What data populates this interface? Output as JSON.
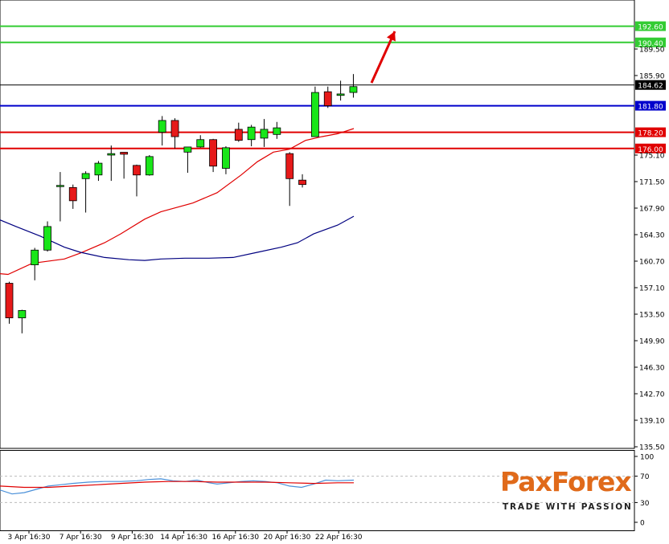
{
  "chart_data": [
    {
      "type": "candlestick",
      "y_ticks": [
        "189.50",
        "185.90",
        "175.10",
        "171.50",
        "167.90",
        "164.30",
        "160.70",
        "157.10",
        "153.50",
        "149.90",
        "146.30",
        "142.70",
        "139.10",
        "135.50"
      ],
      "ylim": [
        135.5,
        193.0
      ],
      "x_labels": [
        "3 Apr 16:30",
        "7 Apr 16:30",
        "9 Apr 16:30",
        "14 Apr 16:30",
        "16 Apr 16:30",
        "20 Apr 16:30",
        "22 Apr 16:30"
      ],
      "current_price": {
        "label": "184.62",
        "value": 184.62
      },
      "levels": [
        {
          "label": "192.60",
          "value": 192.6,
          "color": "#33cc33"
        },
        {
          "label": "190.40",
          "value": 190.4,
          "color": "#33cc33"
        },
        {
          "label": "181.80",
          "value": 181.8,
          "color": "#0000cc"
        },
        {
          "label": "178.20",
          "value": 178.2,
          "color": "#e00000"
        },
        {
          "label": "176.00",
          "value": 176.0,
          "color": "#e00000"
        }
      ],
      "candles": [
        {
          "o": 157.7,
          "h": 157.9,
          "l": 152.2,
          "c": 153.0
        },
        {
          "o": 153.0,
          "h": 154.1,
          "l": 150.9,
          "c": 154.0
        },
        {
          "o": 160.2,
          "h": 162.5,
          "l": 158.1,
          "c": 162.2
        },
        {
          "o": 162.2,
          "h": 166.1,
          "l": 162.0,
          "c": 165.4
        },
        {
          "o": 170.9,
          "h": 172.8,
          "l": 166.1,
          "c": 170.9
        },
        {
          "o": 170.7,
          "h": 171.1,
          "l": 167.8,
          "c": 168.9
        },
        {
          "o": 171.9,
          "h": 172.9,
          "l": 167.3,
          "c": 172.6
        },
        {
          "o": 172.4,
          "h": 174.3,
          "l": 171.6,
          "c": 174.0
        },
        {
          "o": 175.1,
          "h": 176.4,
          "l": 171.6,
          "c": 175.3
        },
        {
          "o": 175.4,
          "h": 175.5,
          "l": 171.9,
          "c": 175.3
        },
        {
          "o": 173.7,
          "h": 173.8,
          "l": 169.5,
          "c": 172.4
        },
        {
          "o": 172.4,
          "h": 175.1,
          "l": 172.3,
          "c": 174.9
        },
        {
          "o": 178.2,
          "h": 180.4,
          "l": 176.4,
          "c": 179.8
        },
        {
          "o": 179.8,
          "h": 180.1,
          "l": 176.0,
          "c": 177.6
        },
        {
          "o": 175.5,
          "h": 176.1,
          "l": 172.7,
          "c": 176.2
        },
        {
          "o": 176.2,
          "h": 177.8,
          "l": 176.1,
          "c": 177.2
        },
        {
          "o": 177.2,
          "h": 177.3,
          "l": 172.8,
          "c": 173.6
        },
        {
          "o": 173.3,
          "h": 176.3,
          "l": 172.5,
          "c": 176.1
        },
        {
          "o": 178.6,
          "h": 179.5,
          "l": 176.9,
          "c": 177.1
        },
        {
          "o": 177.2,
          "h": 179.2,
          "l": 176.3,
          "c": 178.9
        },
        {
          "o": 177.4,
          "h": 180.0,
          "l": 176.2,
          "c": 178.6
        },
        {
          "o": 177.9,
          "h": 179.6,
          "l": 177.3,
          "c": 178.8
        },
        {
          "o": 175.3,
          "h": 175.5,
          "l": 168.2,
          "c": 171.9
        },
        {
          "o": 171.7,
          "h": 172.5,
          "l": 170.7,
          "c": 171.1
        },
        {
          "o": 177.6,
          "h": 184.4,
          "l": 177.6,
          "c": 183.6
        },
        {
          "o": 183.7,
          "h": 184.4,
          "l": 181.5,
          "c": 181.8
        },
        {
          "o": 183.2,
          "h": 185.2,
          "l": 182.5,
          "c": 183.4
        },
        {
          "o": 183.6,
          "h": 186.1,
          "l": 182.9,
          "c": 184.4
        }
      ],
      "ma_fast": {
        "color": "#e00000",
        "points": [
          [
            0,
            159.0
          ],
          [
            10,
            158.9
          ],
          [
            40,
            160.4
          ],
          [
            80,
            161.0
          ],
          [
            100,
            161.8
          ],
          [
            130,
            163.2
          ],
          [
            150,
            164.4
          ],
          [
            180,
            166.4
          ],
          [
            200,
            167.4
          ],
          [
            240,
            168.6
          ],
          [
            270,
            170.0
          ],
          [
            300,
            172.4
          ],
          [
            320,
            174.2
          ],
          [
            340,
            175.5
          ],
          [
            360,
            175.9
          ],
          [
            380,
            177.1
          ],
          [
            400,
            177.6
          ],
          [
            420,
            178.0
          ],
          [
            440,
            178.7
          ]
        ]
      },
      "ma_slow": {
        "color": "#000080",
        "points": [
          [
            0,
            166.3
          ],
          [
            20,
            165.4
          ],
          [
            50,
            164.1
          ],
          [
            80,
            162.6
          ],
          [
            100,
            161.9
          ],
          [
            130,
            161.2
          ],
          [
            160,
            160.9
          ],
          [
            180,
            160.8
          ],
          [
            200,
            161.0
          ],
          [
            230,
            161.1
          ],
          [
            260,
            161.1
          ],
          [
            290,
            161.2
          ],
          [
            320,
            161.9
          ],
          [
            350,
            162.6
          ],
          [
            370,
            163.2
          ],
          [
            390,
            164.4
          ],
          [
            420,
            165.6
          ],
          [
            440,
            166.8
          ]
        ]
      },
      "arrow": {
        "color": "#e00000",
        "from": [
          462,
          184.9
        ],
        "to": [
          491,
          191.9
        ]
      }
    },
    {
      "type": "line",
      "y_ticks": [
        "100",
        "70",
        "30",
        "0"
      ],
      "ylim": [
        0,
        100
      ],
      "levels": [
        70,
        30
      ],
      "series": [
        {
          "color": "#4a90d9",
          "values": [
            [
              0,
              49
            ],
            [
              15,
              43
            ],
            [
              30,
              45
            ],
            [
              45,
              50
            ],
            [
              60,
              55
            ],
            [
              75,
              57
            ],
            [
              90,
              59
            ],
            [
              110,
              61
            ],
            [
              130,
              62
            ],
            [
              150,
              62
            ],
            [
              170,
              63
            ],
            [
              185,
              65
            ],
            [
              200,
              66
            ],
            [
              215,
              63
            ],
            [
              230,
              62
            ],
            [
              245,
              64
            ],
            [
              260,
              60
            ],
            [
              270,
              58
            ],
            [
              285,
              60
            ],
            [
              300,
              62
            ],
            [
              315,
              63
            ],
            [
              330,
              62
            ],
            [
              345,
              60
            ],
            [
              360,
              55
            ],
            [
              375,
              53
            ],
            [
              390,
              58
            ],
            [
              405,
              64
            ],
            [
              420,
              63
            ],
            [
              440,
              64
            ]
          ]
        },
        {
          "color": "#e00000",
          "values": [
            [
              0,
              55
            ],
            [
              30,
              53
            ],
            [
              60,
              53
            ],
            [
              90,
              55
            ],
            [
              120,
              57
            ],
            [
              150,
              59
            ],
            [
              180,
              61
            ],
            [
              210,
              62
            ],
            [
              240,
              62
            ],
            [
              270,
              61
            ],
            [
              300,
              61
            ],
            [
              330,
              61
            ],
            [
              360,
              60
            ],
            [
              390,
              59
            ],
            [
              420,
              60
            ],
            [
              440,
              60
            ]
          ]
        }
      ]
    }
  ],
  "logo": {
    "brand": "PaxForex",
    "tagline": "TRADE WITH PASSION",
    "color": "#e06a1a"
  }
}
